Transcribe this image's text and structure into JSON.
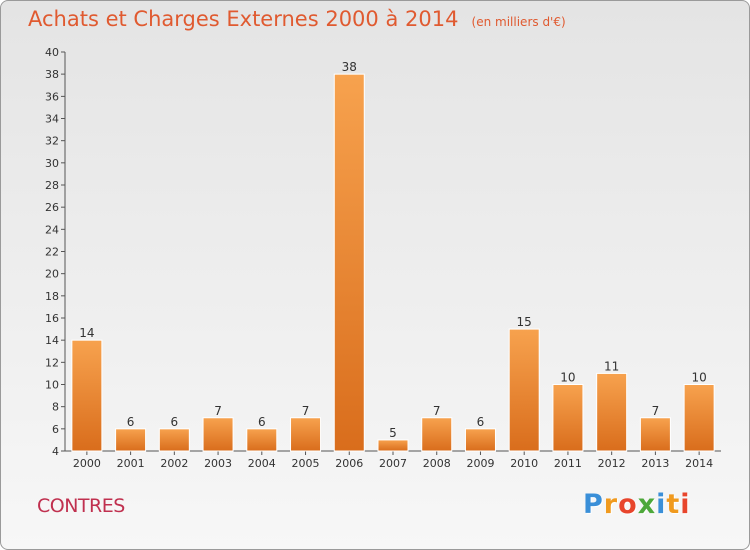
{
  "title": "Achats et Charges Externes 2000 à 2014",
  "unit": "(en milliers d'€)",
  "commune": "CONTRES",
  "logo": {
    "text": "Proxiti",
    "colors": [
      "#3a8fd8",
      "#f09a1e",
      "#e8452c",
      "#4da83a",
      "#3a8fd8",
      "#f09a1e",
      "#e8452c"
    ]
  },
  "colors": {
    "bar_top": "#f7a24e",
    "bar_bottom": "#d96d1c",
    "title": "#e05a30",
    "commune": "#c0304f"
  },
  "chart_data": {
    "type": "bar",
    "title": "Achats et Charges Externes 2000 à 2014",
    "subtitle": "(en milliers d'€)",
    "categories": [
      "2000",
      "2001",
      "2002",
      "2003",
      "2004",
      "2005",
      "2006",
      "2007",
      "2008",
      "2009",
      "2010",
      "2011",
      "2012",
      "2013",
      "2014"
    ],
    "values": [
      14,
      6,
      6,
      7,
      6,
      7,
      38,
      5,
      7,
      6,
      15,
      10,
      11,
      7,
      10
    ],
    "ylim": [
      4,
      40
    ],
    "yticks": [
      4,
      6,
      8,
      10,
      12,
      14,
      16,
      18,
      20,
      22,
      24,
      26,
      28,
      30,
      32,
      34,
      36,
      38,
      40
    ],
    "grid": false,
    "data_labels": true
  }
}
